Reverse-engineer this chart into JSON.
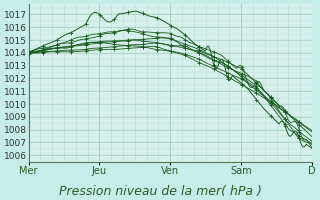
{
  "title": "",
  "xlabel": "Pression niveau de la mer( hPa )",
  "bg_color": "#c8ede8",
  "plot_bg_color": "#d8f0ec",
  "grid_color_major": "#a0ccbb",
  "grid_color_minor": "#b8ddd4",
  "line_color": "#1a5c20",
  "ylim": [
    1005.5,
    1017.8
  ],
  "yticks": [
    1006,
    1007,
    1008,
    1009,
    1010,
    1011,
    1012,
    1013,
    1014,
    1015,
    1016,
    1017
  ],
  "xtick_labels": [
    "Mer",
    "Jeu",
    "Ven",
    "Sam",
    "D"
  ],
  "xtick_positions": [
    0,
    0.25,
    0.5,
    0.75,
    1.0
  ],
  "xlabel_fontsize": 9,
  "ytick_fontsize": 6.5,
  "xtick_fontsize": 7
}
